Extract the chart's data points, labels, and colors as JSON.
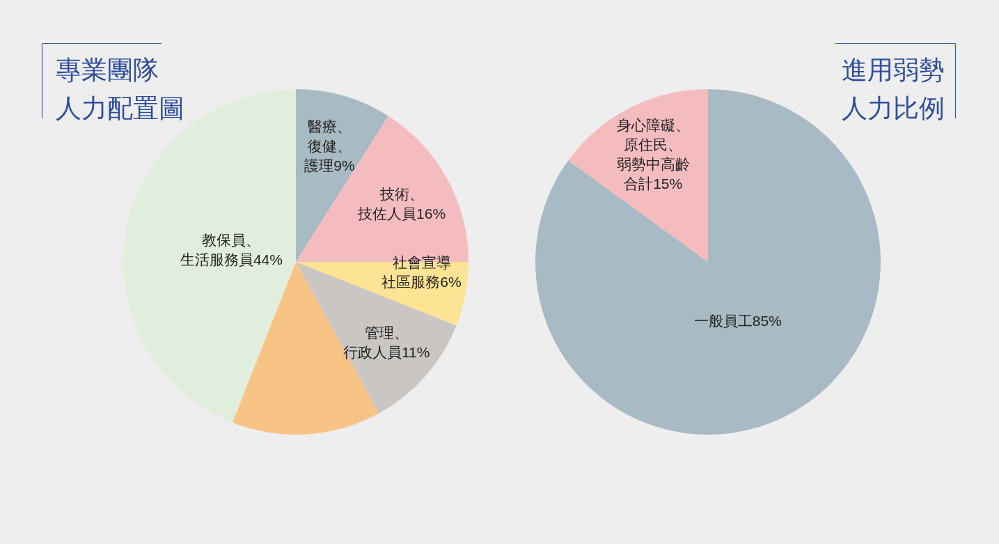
{
  "chart_data": [
    {
      "type": "pie",
      "title": "專業團隊人力配置圖",
      "categories": [
        "醫療、復健、護理",
        "技術、技佐人員",
        "社會宣導社區服務",
        "管理、行政人員",
        null,
        "教保員、生活服務員"
      ],
      "values": [
        9,
        16,
        6,
        11,
        14,
        44
      ],
      "value_labels": [
        "9%",
        "16%",
        "6%",
        "11%",
        null,
        "44%"
      ],
      "colors": [
        "#a8bac3",
        "#f5bcc0",
        "#fde394",
        "#c9c6c3",
        "#f8c486",
        "#e2eedd"
      ]
    },
    {
      "type": "pie",
      "title": "進用弱勢人力比例",
      "categories": [
        "一般員工",
        "身心障礙、原住民、弱勢中高齡合計"
      ],
      "values": [
        85,
        15
      ],
      "value_labels": [
        "85%",
        "15%"
      ],
      "colors": [
        "#a8bac3",
        "#f5bcc0"
      ]
    }
  ]
}
